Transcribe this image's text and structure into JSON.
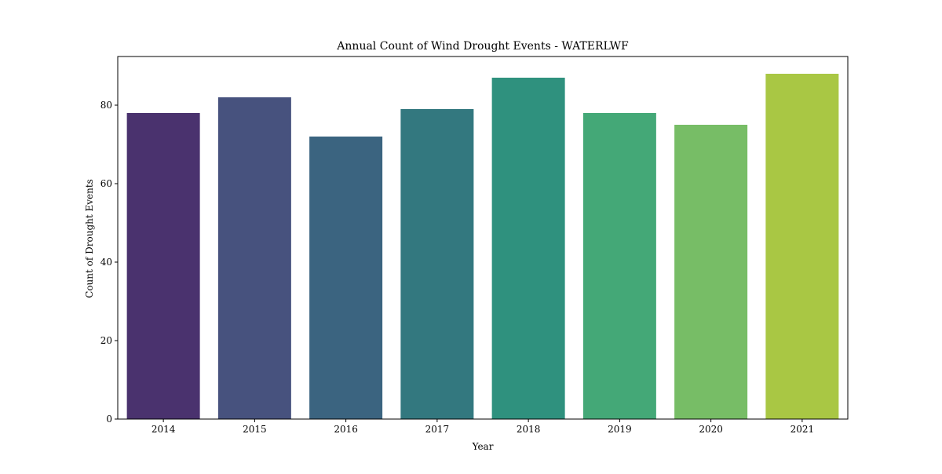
{
  "chart_data": {
    "type": "bar",
    "title": "Annual Count of Wind Drought Events - WATERLWF",
    "xlabel": "Year",
    "ylabel": "Count of Drought Events",
    "categories": [
      "2014",
      "2015",
      "2016",
      "2017",
      "2018",
      "2019",
      "2020",
      "2021"
    ],
    "values": [
      78,
      82,
      72,
      79,
      87,
      78,
      75,
      88
    ],
    "colors": [
      "#4a326e",
      "#47527e",
      "#3b6480",
      "#33787f",
      "#2f917e",
      "#44a877",
      "#77bd66",
      "#a9c744"
    ],
    "ylim": [
      0,
      92.4
    ],
    "yticks": [
      0,
      20,
      40,
      60,
      80
    ],
    "grid": false,
    "legend": "none"
  }
}
